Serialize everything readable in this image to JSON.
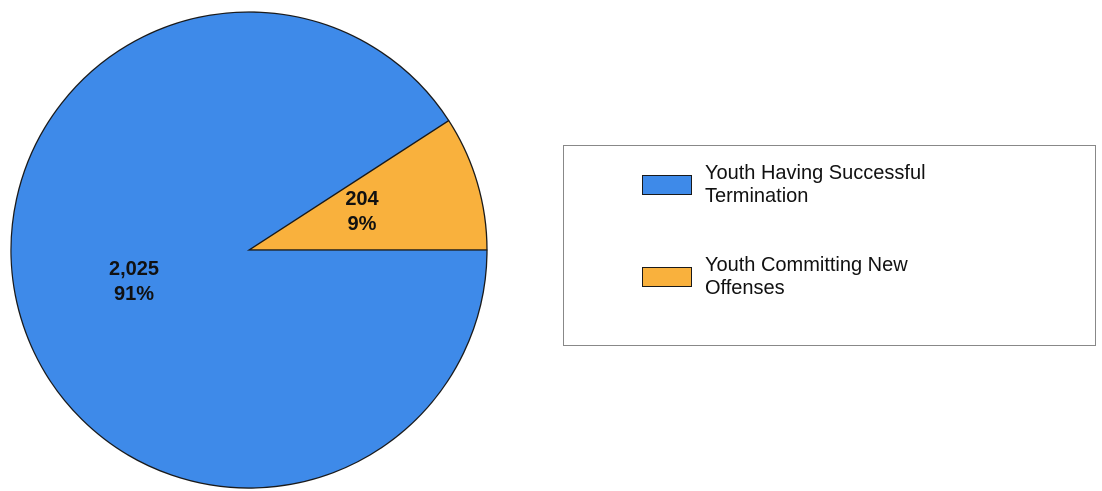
{
  "chart_data": {
    "type": "pie",
    "slices": [
      {
        "name": "Youth Having Successful Termination",
        "value": 2025,
        "value_label": "2,025",
        "percent_label": "91%",
        "color": "#3e8ae9"
      },
      {
        "name": "Youth Committing New Offenses",
        "value": 204,
        "value_label": "204",
        "percent_label": "9%",
        "color": "#f9b13d"
      }
    ],
    "legend": {
      "placement": "right",
      "items": [
        {
          "lines": [
            "Youth Having Successful",
            "Termination"
          ],
          "color": "#3e8ae9"
        },
        {
          "lines": [
            "Youth Committing New",
            "Offenses"
          ],
          "color": "#f9b13d"
        }
      ]
    }
  }
}
